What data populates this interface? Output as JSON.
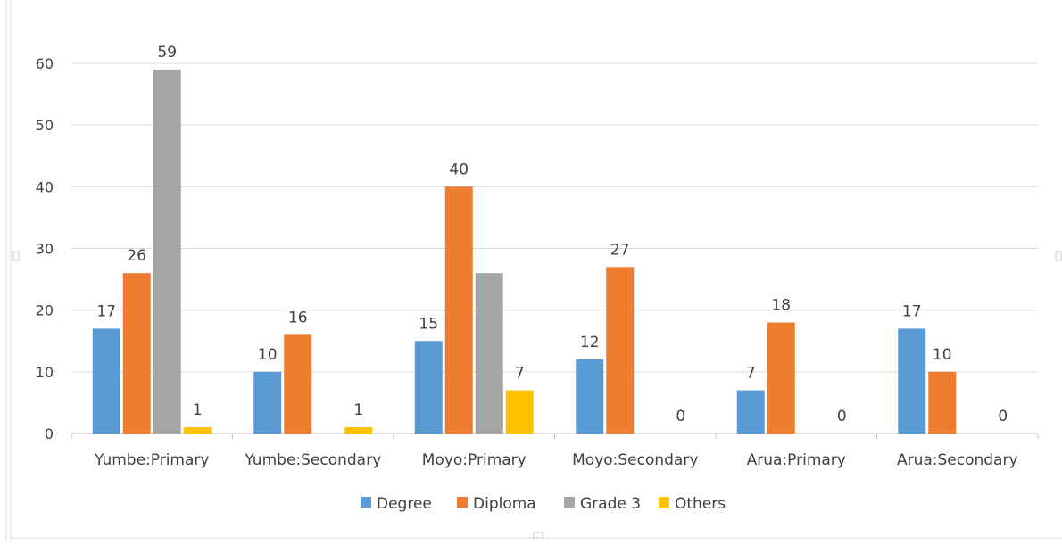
{
  "chart_data": {
    "type": "bar",
    "categories": [
      "Yumbe:Primary",
      "Yumbe:Secondary",
      "Moyo:Primary",
      "Moyo:Secondary",
      "Arua:Primary",
      "Arua:Secondary"
    ],
    "series": [
      {
        "name": "Degree",
        "color": "#5b9bd5",
        "values": [
          17,
          10,
          15,
          12,
          7,
          17
        ]
      },
      {
        "name": "Diploma",
        "color": "#ed7d31",
        "values": [
          26,
          16,
          40,
          27,
          18,
          10
        ]
      },
      {
        "name": "Grade 3",
        "color": "#a5a5a5",
        "values": [
          59,
          null,
          26,
          null,
          null,
          null
        ]
      },
      {
        "name": "Others",
        "color": "#ffc000",
        "values": [
          1,
          1,
          7,
          0,
          0,
          0
        ]
      }
    ],
    "data_labels": [
      [
        17,
        26,
        59,
        1
      ],
      [
        10,
        16,
        null,
        1
      ],
      [
        15,
        40,
        null,
        7
      ],
      [
        12,
        27,
        null,
        0
      ],
      [
        7,
        18,
        null,
        0
      ],
      [
        17,
        10,
        null,
        0
      ]
    ],
    "yticks": [
      0,
      10,
      20,
      30,
      40,
      50,
      60
    ],
    "ylim": [
      0,
      60
    ],
    "grid": true,
    "legend_position": "bottom",
    "title": "",
    "xlabel": "",
    "ylabel": ""
  }
}
